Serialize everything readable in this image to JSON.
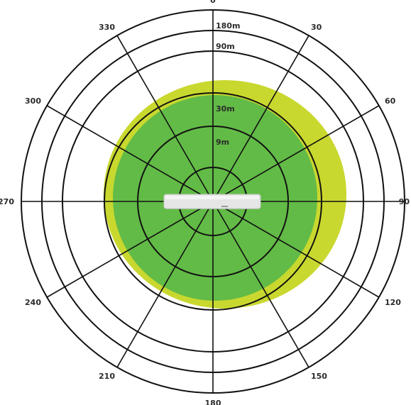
{
  "angle_labels": [
    "0",
    "30",
    "60",
    "90",
    "120",
    "150",
    "180",
    "210",
    "240",
    "270",
    "300",
    "330"
  ],
  "range_labels": [
    "180m",
    "90m",
    "30m",
    "9m"
  ],
  "colors": {
    "outer_coverage": "#c9d82e",
    "inner_coverage": "#62bb46",
    "grid": "#111111",
    "device": "#e6e6e6"
  }
}
